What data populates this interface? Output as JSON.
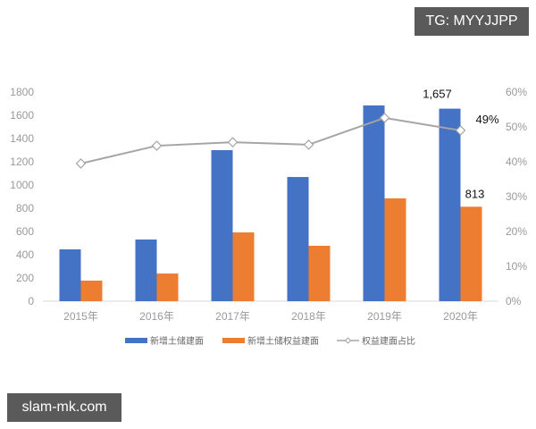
{
  "watermarks": {
    "top_right": "TG: MYYJJPP",
    "bottom_left": "slam-mk.com"
  },
  "colors": {
    "blue": "#4472c4",
    "orange": "#ed7d31",
    "line": "#a5a5a5",
    "axis_text": "#999999"
  },
  "chart_data": {
    "type": "bar",
    "title": "",
    "categories": [
      "2015年",
      "2016年",
      "2017年",
      "2018年",
      "2019年",
      "2020年"
    ],
    "series": [
      {
        "name": "新增土储建面",
        "type": "bar",
        "axis": "left",
        "values": [
          446,
          531,
          1300,
          1069,
          1685,
          1657
        ]
      },
      {
        "name": "新增土储权益建面",
        "type": "bar",
        "axis": "left",
        "values": [
          177,
          238,
          592,
          477,
          885,
          813
        ]
      },
      {
        "name": "权益建面占比",
        "type": "line",
        "axis": "right",
        "values": [
          39.5,
          44.6,
          45.6,
          44.9,
          52.6,
          49
        ]
      }
    ],
    "annotations": [
      {
        "series": "新增土储建面",
        "category": "2020年",
        "text": "1,657"
      },
      {
        "series": "新增土储权益建面",
        "category": "2020年",
        "text": "813"
      },
      {
        "series": "权益建面占比",
        "category": "2020年",
        "text": "49%"
      }
    ],
    "ylim": [
      0,
      1800
    ],
    "yticks": [
      "0",
      "200",
      "400",
      "600",
      "800",
      "1000",
      "1200",
      "1400",
      "1600",
      "1800"
    ],
    "y2lim": [
      0,
      60
    ],
    "y2ticks": [
      "0%",
      "10%",
      "20%",
      "30%",
      "40%",
      "50%",
      "60%"
    ],
    "xlabel": "",
    "ylabel": "",
    "y2label": "",
    "grid": false,
    "legend_position": "bottom"
  }
}
